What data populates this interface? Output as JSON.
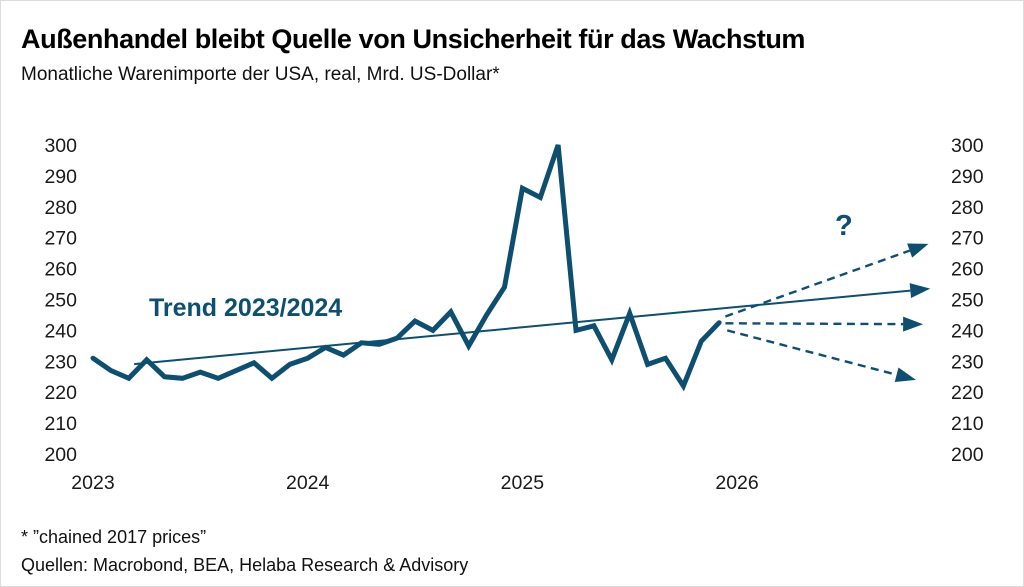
{
  "footer": {
    "footnote": "* ”chained 2017 prices”",
    "sources": "Quellen: Macrobond, BEA, Helaba Research & Advisory"
  },
  "colors": {
    "line": "#0e4f70",
    "text": "#1a1a1a",
    "background": "#ffffff"
  },
  "chart_data": {
    "type": "line",
    "title": "Außenhandel bleibt Quelle von Unsicherheit für das Wachstum",
    "subtitle": "Monatliche Warenimporte der USA, real, Mrd. US-Dollar*",
    "ylabel": "Mrd. US-Dollar",
    "ylim": [
      200,
      300
    ],
    "yticks": [
      300,
      290,
      280,
      270,
      260,
      250,
      240,
      230,
      220,
      210,
      200
    ],
    "xticks": [
      2023,
      2024,
      2025,
      2026
    ],
    "gridlines": false,
    "axis_labels_both_sides": true,
    "x": [
      "2023-01",
      "2023-02",
      "2023-03",
      "2023-04",
      "2023-05",
      "2023-06",
      "2023-07",
      "2023-08",
      "2023-09",
      "2023-10",
      "2023-11",
      "2023-12",
      "2024-01",
      "2024-02",
      "2024-03",
      "2024-04",
      "2024-05",
      "2024-06",
      "2024-07",
      "2024-08",
      "2024-09",
      "2024-10",
      "2024-11",
      "2024-12",
      "2025-01",
      "2025-02",
      "2025-03",
      "2025-04",
      "2025-05",
      "2025-06",
      "2025-07",
      "2025-08",
      "2025-09",
      "2025-10",
      "2025-11",
      "2025-12"
    ],
    "values": [
      231,
      227,
      224.5,
      230.5,
      225,
      224.5,
      226.5,
      224.5,
      227,
      229.5,
      224.5,
      229,
      231,
      234.5,
      232,
      236,
      235.5,
      237.5,
      243,
      240,
      246,
      235,
      245,
      254,
      286,
      283,
      300,
      240,
      241.5,
      230.5,
      245.5,
      229,
      231,
      222,
      236.5,
      242.5
    ],
    "trend": {
      "label": "Trend 2023/2024",
      "start": {
        "month_index": 2.3,
        "value": 229.1
      },
      "end": {
        "month_index": 46.8,
        "value": 253.5
      },
      "style": "solid-arrow"
    },
    "scenarios": [
      {
        "name": "upside",
        "style": "dashed",
        "start": {
          "month_index": 35.35,
          "value": 244.5
        },
        "end": {
          "month_index": 46.7,
          "value": 268
        }
      },
      {
        "name": "sideways",
        "style": "dashed",
        "start": {
          "month_index": 35.35,
          "value": 242.3
        },
        "end": {
          "month_index": 46.4,
          "value": 242
        }
      },
      {
        "name": "downside",
        "style": "dashed",
        "start": {
          "month_index": 35.45,
          "value": 240
        },
        "end": {
          "month_index": 46.0,
          "value": 224
        }
      }
    ],
    "annotations": {
      "question_mark": "?",
      "trend_label": "Trend 2023/2024"
    }
  }
}
